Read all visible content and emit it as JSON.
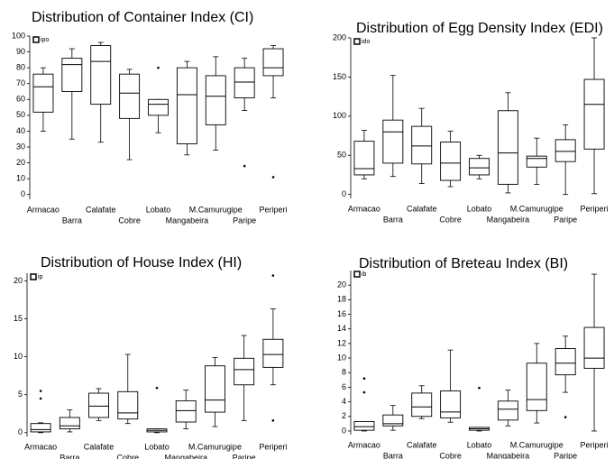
{
  "chart_data": [
    {
      "type": "box",
      "title": "Distribution of Container Index (CI)",
      "legend": "ipo",
      "categories": [
        "Armacao",
        "Barra",
        "Calafate",
        "Cobre",
        "Lobato",
        "Mangabeira",
        "M.Camurugipe",
        "Paripe",
        "Periperi"
      ],
      "min": [
        40,
        35,
        33,
        22,
        39,
        25,
        28,
        53,
        61
      ],
      "q1": [
        52,
        65,
        57,
        48,
        50,
        32,
        44,
        61,
        75
      ],
      "median": [
        68,
        82,
        84,
        64,
        57,
        63,
        62,
        71,
        80
      ],
      "q3": [
        76,
        86,
        94,
        76,
        60,
        80,
        75,
        80,
        92
      ],
      "max": [
        80,
        92,
        96,
        79,
        60,
        84,
        87,
        86,
        94
      ],
      "outliers": [
        [],
        [],
        [],
        [],
        [
          80
        ],
        [],
        [],
        [
          18
        ],
        [
          11
        ]
      ],
      "ylim": [
        -3,
        100
      ],
      "yticks": [
        0,
        10,
        20,
        30,
        40,
        50,
        60,
        70,
        80,
        90,
        100
      ],
      "color": "#000000"
    },
    {
      "type": "box",
      "title": "Distribution of Egg Density Index (EDI)",
      "legend": "ido",
      "categories": [
        "Armacao",
        "Barra",
        "Calafate",
        "Cobre",
        "Lobato",
        "Mangabeira",
        "M.Camurugipe",
        "Paripe",
        "Periperi"
      ],
      "min": [
        20,
        23,
        14,
        10,
        20,
        2,
        13,
        0,
        1
      ],
      "q1": [
        25,
        40,
        39,
        18,
        25,
        13,
        35,
        42,
        58
      ],
      "median": [
        33,
        80,
        62,
        40,
        34,
        53,
        46,
        55,
        115
      ],
      "q3": [
        68,
        95,
        87,
        67,
        46,
        107,
        49,
        70,
        147
      ],
      "max": [
        82,
        152,
        110,
        81,
        50,
        130,
        72,
        89,
        200
      ],
      "outliers": [
        [],
        [],
        [],
        [],
        [],
        [],
        [],
        [],
        []
      ],
      "ylim": [
        -5,
        200
      ],
      "yticks": [
        0,
        50,
        100,
        150,
        200
      ],
      "color": "#000000"
    },
    {
      "type": "box",
      "title": "Distribution of House Index (HI)",
      "legend": "ip",
      "categories": [
        "Armacao",
        "Barra",
        "Calafate",
        "Cobre",
        "Lobato",
        "Mangabeira",
        "M.Camurugipe",
        "Paripe",
        "Periperi"
      ],
      "min": [
        0,
        0.1,
        1.6,
        1.2,
        0,
        0.5,
        0.8,
        1.6,
        6.3
      ],
      "q1": [
        0.1,
        0.5,
        2,
        1.8,
        0.1,
        1.4,
        2.7,
        6.3,
        8.6
      ],
      "median": [
        0.4,
        0.9,
        3.5,
        2.6,
        0.3,
        2.9,
        4.3,
        8.3,
        10.3
      ],
      "q3": [
        1.2,
        2,
        5.2,
        5.4,
        0.5,
        4.2,
        8.8,
        9.8,
        12.3
      ],
      "max": [
        1.3,
        3,
        5.8,
        10.3,
        0.5,
        5.6,
        9.9,
        12.8,
        16.3
      ],
      "outliers": [
        [
          4.5,
          5.5
        ],
        [],
        [],
        [],
        [
          5.9
        ],
        [],
        [],
        [],
        [
          20.7,
          1.6
        ]
      ],
      "ylim": [
        -0.5,
        21
      ],
      "yticks": [
        0,
        5,
        10,
        15,
        20
      ],
      "color": "#000000"
    },
    {
      "type": "box",
      "title": "Distribution of Breteau Index (BI)",
      "legend": "ib",
      "categories": [
        "Armacao",
        "Barra",
        "Calafate",
        "Cobre",
        "Lobato",
        "Mangabeira",
        "M.Camurugipe",
        "Paripe",
        "Periperi"
      ],
      "min": [
        0,
        0.1,
        1.7,
        1.2,
        0,
        0.7,
        1.1,
        5.3,
        0
      ],
      "q1": [
        0.1,
        0.7,
        2,
        1.8,
        0.1,
        1.5,
        2.8,
        7.7,
        8.6
      ],
      "median": [
        0.6,
        1,
        3.3,
        2.6,
        0.3,
        3,
        4.3,
        9.3,
        10
      ],
      "q3": [
        1.3,
        2.2,
        5.2,
        5.5,
        0.5,
        4.1,
        9.3,
        11.3,
        14.2
      ],
      "max": [
        1.3,
        3.5,
        6.2,
        11.1,
        0.5,
        5.6,
        12,
        13,
        21.5
      ],
      "outliers": [
        [
          5.3,
          7.2
        ],
        [],
        [],
        [],
        [
          5.9
        ],
        [],
        [],
        [
          1.9
        ],
        []
      ],
      "ylim": [
        -0.5,
        22
      ],
      "yticks": [
        0,
        2,
        4,
        6,
        8,
        10,
        12,
        14,
        16,
        18,
        20
      ],
      "color": "#000000"
    }
  ]
}
